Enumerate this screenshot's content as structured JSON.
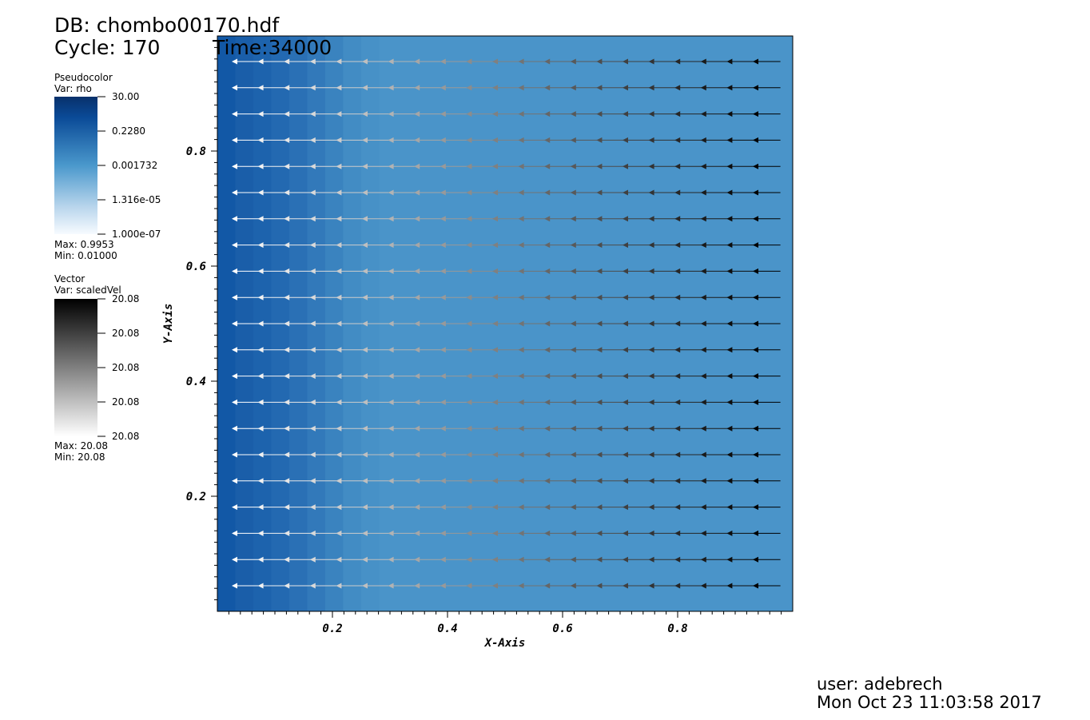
{
  "header": {
    "db": "DB: chombo00170.hdf",
    "cycle": "Cycle: 170",
    "time": "Time:34000"
  },
  "legends": [
    {
      "title": "Pseudocolor",
      "var": "Var: rho",
      "labels": [
        "30.00",
        "0.2280",
        "0.001732",
        "1.316e-05",
        "1.000e-07"
      ],
      "max": "Max:  0.9953",
      "min": "Min:  0.01000"
    },
    {
      "title": "Vector",
      "var": "Var: scaledVel",
      "labels": [
        "20.08",
        "20.08",
        "20.08",
        "20.08",
        "20.08"
      ],
      "max": "Max:  20.08",
      "min": "Min:  20.08"
    }
  ],
  "chart_data": {
    "type": "vector",
    "x_label": "X-Axis",
    "y_label": "Y-Axis",
    "xlim": [
      0,
      1
    ],
    "ylim": [
      0,
      1
    ],
    "xticks": [
      0.2,
      0.4,
      0.6,
      0.8
    ],
    "yticks": [
      0.2,
      0.4,
      0.6,
      0.8
    ]
  },
  "footer": {
    "user": "user: adebrech",
    "date": "Mon Oct 23 11:03:58 2017"
  }
}
